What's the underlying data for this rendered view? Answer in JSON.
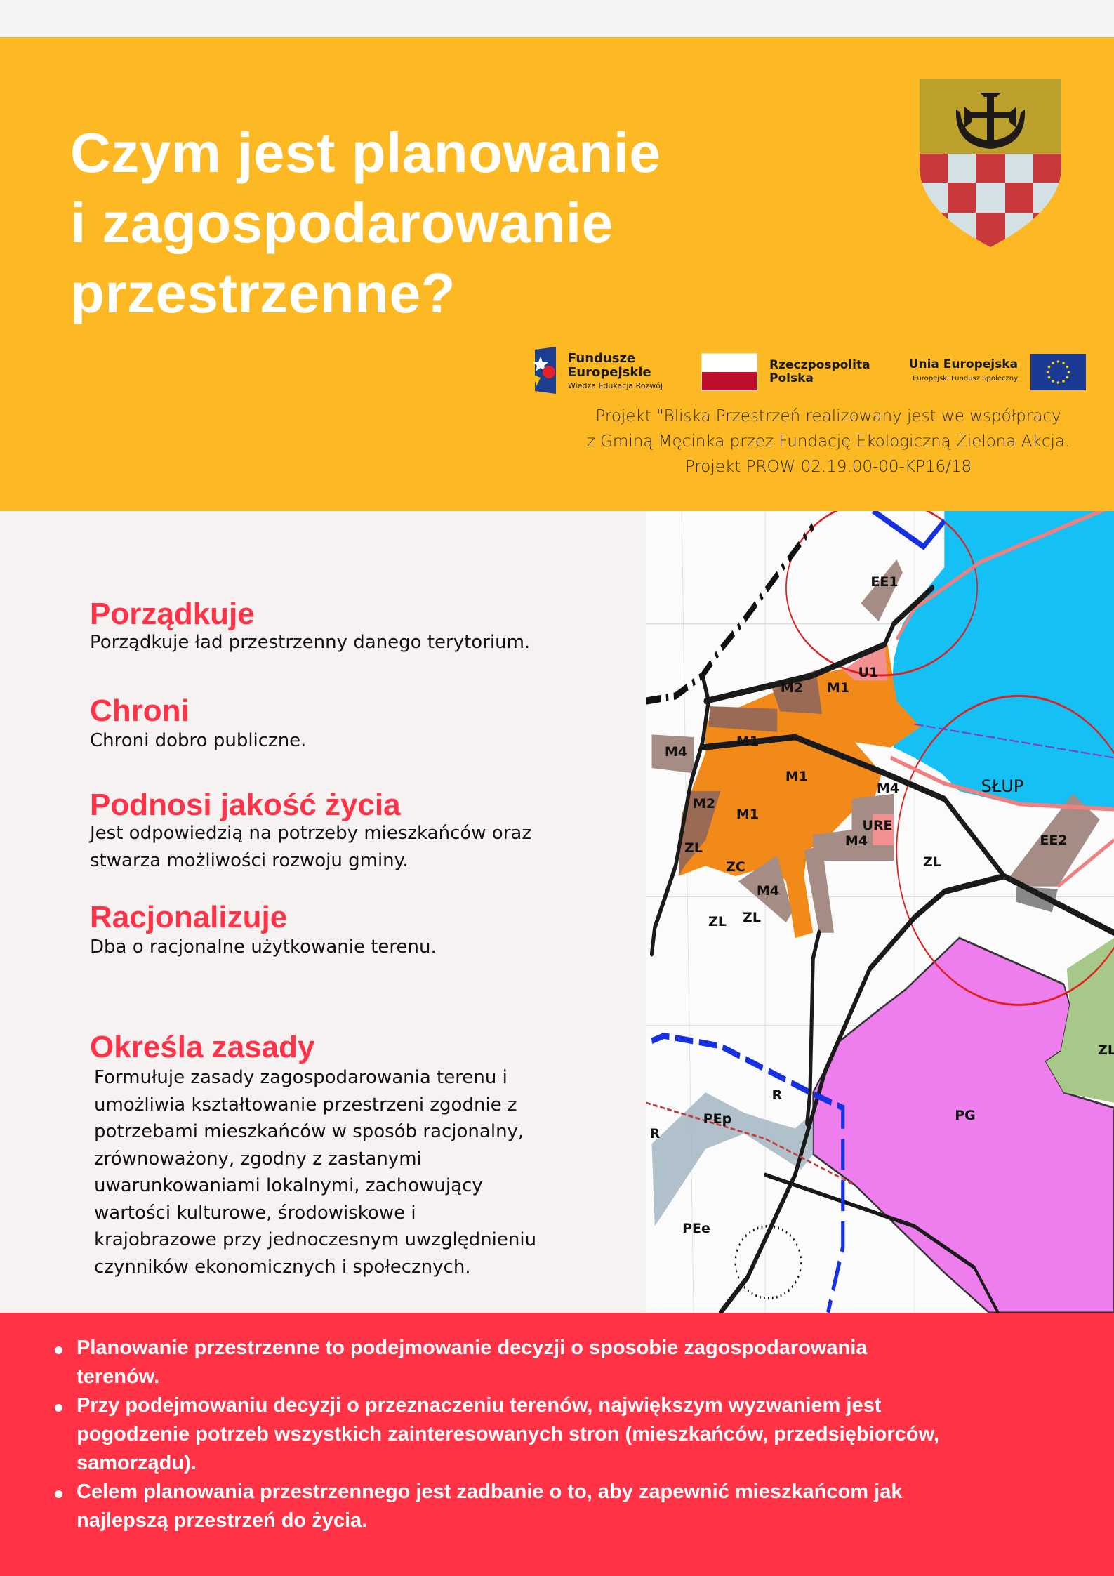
{
  "header": {
    "title_lines": [
      "Czym jest planowanie",
      "i zagospodarowanie",
      "przestrzenne?"
    ],
    "logos": {
      "fe": {
        "line1": "Fundusze",
        "line2": "Europejskie",
        "line3": "Wiedza Edukacja Rozwój"
      },
      "rp": {
        "line1": "Rzeczpospolita",
        "line2": "Polska"
      },
      "ue": {
        "line1": "Unia Europejska",
        "line2": "Europejski Fundusz Społeczny"
      }
    },
    "project_lines": [
      "Projekt \"Bliska Przestrzeń realizowany jest we współpracy",
      "z Gminą Męcinka przez Fundację Ekologiczną Zielona Akcja.",
      "Projekt PROW 02.19.00-00-KP16/18"
    ]
  },
  "sections": [
    {
      "heading": "Porządkuje",
      "lines": [
        "Porządkuje ład przestrzenny danego terytorium."
      ]
    },
    {
      "heading": "Chroni",
      "lines": [
        "Chroni dobro publiczne."
      ]
    },
    {
      "heading": "Podnosi jakość życia",
      "lines": [
        "Jest odpowiedzią na potrzeby mieszkańców oraz",
        "stwarza możliwości rozwoju gminy."
      ]
    },
    {
      "heading": "Racjonalizuje",
      "lines": [
        "Dba o racjonalne użytkowanie terenu."
      ]
    },
    {
      "heading": "Określa zasady",
      "lines": [
        "Formułuje zasady zagospodarowania terenu i",
        "umożliwia kształtowanie przestrzeni zgodnie z",
        "potrzebami mieszkańców w sposób racjonalny,",
        "zrównoważony, zgodny z zastanymi",
        "uwarunkowaniami lokalnymi, zachowujący",
        "wartości kulturowe, środowiskowe i",
        "krajobrazowe przy jednoczesnym uwzględnieniu",
        "czynników ekonomicznych i społecznych."
      ]
    }
  ],
  "map": {
    "labels": [
      "EE1",
      "U1",
      "M2",
      "M1",
      "M1",
      "M4",
      "M1",
      "M4",
      "SŁUP",
      "M2",
      "M1",
      "URE",
      "M4",
      "EE2",
      "ZL",
      "ZL",
      "ZC",
      "M4",
      "ZL",
      "ZL",
      "ZL",
      "PG",
      "PEp",
      "R",
      "R",
      "PEe"
    ]
  },
  "footer": {
    "bullets": [
      [
        "Planowanie przestrzenne to podejmowanie decyzji o sposobie zagospodarowania",
        "terenów."
      ],
      [
        "Przy podejmowaniu decyzji o przeznaczeniu terenów, największym wyzwaniem jest",
        "pogodzenie potrzeb wszystkich zainteresowanych stron (mieszkańców, przedsiębiorców,",
        "samorządu)."
      ],
      [
        "Celem planowania przestrzennego jest zadbanie o to, aby zapewnić mieszkańcom jak",
        "najlepszą przestrzeń do życia."
      ]
    ]
  },
  "colors": {
    "yellow": "#fdb924",
    "red": "#ff3246",
    "heading_red": "#ff3347",
    "background": "#f7f2f2"
  }
}
